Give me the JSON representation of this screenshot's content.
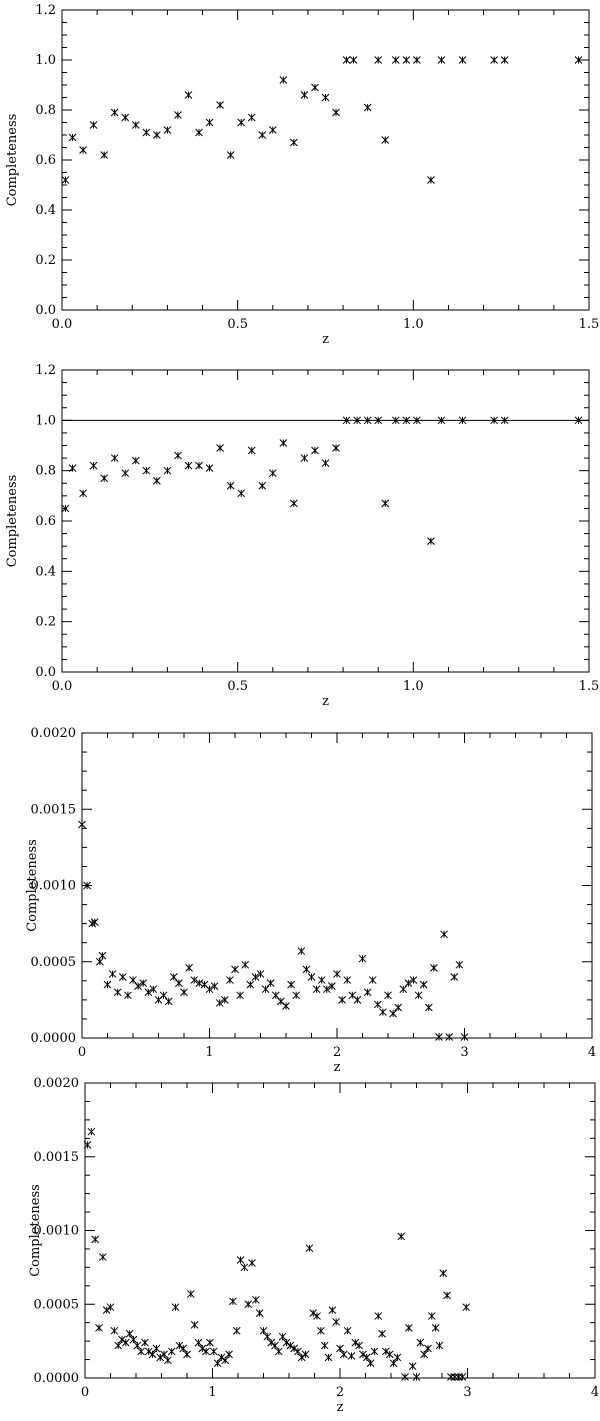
{
  "chart_data": [
    {
      "type": "scatter",
      "xlabel": "z",
      "ylabel": "Completeness",
      "xlim": [
        0,
        1.5
      ],
      "ylim": [
        0,
        1.2
      ],
      "xticks": [
        "0.0",
        "0.5",
        "1.0",
        "1.5"
      ],
      "yticks": [
        "0.0",
        "0.2",
        "0.4",
        "0.6",
        "0.8",
        "1.0",
        "1.2"
      ],
      "reference_line": null,
      "series": [
        {
          "x": [
            0.01,
            0.03,
            0.06,
            0.09,
            0.12,
            0.15,
            0.18,
            0.21,
            0.24,
            0.27,
            0.3,
            0.33,
            0.36,
            0.39,
            0.42,
            0.45,
            0.48,
            0.51,
            0.54,
            0.57,
            0.6,
            0.63,
            0.66,
            0.69,
            0.72,
            0.75,
            0.78,
            0.81,
            0.83,
            0.87,
            0.9,
            0.92,
            0.95,
            0.98,
            1.01,
            1.05,
            1.08,
            1.14,
            1.23,
            1.26,
            1.47
          ],
          "y": [
            0.52,
            0.69,
            0.64,
            0.74,
            0.62,
            0.79,
            0.77,
            0.74,
            0.71,
            0.7,
            0.72,
            0.78,
            0.86,
            0.71,
            0.75,
            0.82,
            0.62,
            0.75,
            0.77,
            0.7,
            0.72,
            0.92,
            0.67,
            0.86,
            0.89,
            0.85,
            0.79,
            1.0,
            1.0,
            0.81,
            1.0,
            0.68,
            1.0,
            1.0,
            1.0,
            0.52,
            1.0,
            1.0,
            1.0,
            1.0,
            1.0
          ]
        }
      ]
    },
    {
      "type": "scatter",
      "xlabel": "z",
      "ylabel": "Completeness",
      "xlim": [
        0,
        1.5
      ],
      "ylim": [
        0,
        1.2
      ],
      "xticks": [
        "0.0",
        "0.5",
        "1.0",
        "1.5"
      ],
      "yticks": [
        "0.0",
        "0.2",
        "0.4",
        "0.6",
        "0.8",
        "1.0",
        "1.2"
      ],
      "reference_line": 1.0,
      "series": [
        {
          "x": [
            0.01,
            0.03,
            0.06,
            0.09,
            0.12,
            0.15,
            0.18,
            0.21,
            0.24,
            0.27,
            0.3,
            0.33,
            0.36,
            0.39,
            0.42,
            0.45,
            0.48,
            0.51,
            0.54,
            0.57,
            0.6,
            0.63,
            0.66,
            0.69,
            0.72,
            0.75,
            0.78,
            0.81,
            0.84,
            0.87,
            0.9,
            0.92,
            0.95,
            0.98,
            1.01,
            1.05,
            1.08,
            1.14,
            1.23,
            1.26,
            1.47
          ],
          "y": [
            0.65,
            0.81,
            0.71,
            0.82,
            0.77,
            0.85,
            0.79,
            0.84,
            0.8,
            0.76,
            0.8,
            0.86,
            0.82,
            0.82,
            0.81,
            0.89,
            0.74,
            0.71,
            0.88,
            0.74,
            0.79,
            0.91,
            0.67,
            0.85,
            0.88,
            0.83,
            0.89,
            1.0,
            1.0,
            1.0,
            1.0,
            0.67,
            1.0,
            1.0,
            1.0,
            0.52,
            1.0,
            1.0,
            1.0,
            1.0,
            1.0
          ]
        }
      ]
    },
    {
      "type": "scatter",
      "xlabel": "z",
      "ylabel": "Completeness",
      "xlim": [
        0,
        4
      ],
      "ylim": [
        0,
        0.002
      ],
      "xticks": [
        "0",
        "1",
        "2",
        "3",
        "4"
      ],
      "yticks": [
        "0.0000",
        "0.0005",
        "0.0010",
        "0.0015",
        "0.0020"
      ],
      "reference_line": null,
      "series": [
        {
          "x": [
            0.0,
            0.04,
            0.08,
            0.1,
            0.14,
            0.16,
            0.2,
            0.24,
            0.28,
            0.32,
            0.36,
            0.4,
            0.44,
            0.48,
            0.52,
            0.56,
            0.6,
            0.64,
            0.68,
            0.72,
            0.76,
            0.8,
            0.84,
            0.88,
            0.92,
            0.96,
            1.0,
            1.04,
            1.08,
            1.12,
            1.16,
            1.2,
            1.24,
            1.28,
            1.32,
            1.36,
            1.4,
            1.44,
            1.48,
            1.52,
            1.56,
            1.6,
            1.64,
            1.68,
            1.72,
            1.76,
            1.8,
            1.84,
            1.88,
            1.92,
            1.96,
            2.0,
            2.04,
            2.08,
            2.12,
            2.16,
            2.2,
            2.24,
            2.28,
            2.32,
            2.36,
            2.4,
            2.44,
            2.48,
            2.52,
            2.56,
            2.6,
            2.64,
            2.68,
            2.72,
            2.76,
            2.8,
            2.84,
            2.88,
            2.92,
            2.96,
            3.0
          ],
          "y": [
            0.0014,
            0.001,
            0.00075,
            0.00076,
            0.0005,
            0.00054,
            0.00035,
            0.00042,
            0.0003,
            0.0004,
            0.00028,
            0.00038,
            0.00034,
            0.00036,
            0.0003,
            0.00032,
            0.00025,
            0.00028,
            0.00024,
            0.0004,
            0.00036,
            0.0003,
            0.00046,
            0.00038,
            0.00036,
            0.00035,
            0.00032,
            0.00034,
            0.00023,
            0.00025,
            0.00038,
            0.00045,
            0.00028,
            0.00048,
            0.00035,
            0.0004,
            0.00042,
            0.00032,
            0.00036,
            0.00028,
            0.00024,
            0.00021,
            0.00035,
            0.00028,
            0.00057,
            0.00045,
            0.0004,
            0.00032,
            0.00038,
            0.00032,
            0.00034,
            0.00042,
            0.00025,
            0.00038,
            0.00028,
            0.00025,
            0.00052,
            0.0003,
            0.00038,
            0.00022,
            0.00017,
            0.00028,
            0.00016,
            0.0002,
            0.00032,
            0.00036,
            0.00038,
            0.00028,
            0.00035,
            0.0002,
            0.00046,
            0.0,
            0.00068,
            0.0,
            0.0004,
            0.00048,
            0.0
          ]
        }
      ]
    },
    {
      "type": "scatter",
      "xlabel": "z",
      "ylabel": "Completeness",
      "xlim": [
        0,
        4
      ],
      "ylim": [
        0,
        0.002
      ],
      "xticks": [
        "0",
        "1",
        "2",
        "3",
        "4"
      ],
      "yticks": [
        "0.0000",
        "0.0005",
        "0.0010",
        "0.0015",
        "0.0020"
      ],
      "reference_line": null,
      "series": [
        {
          "x": [
            0.02,
            0.05,
            0.08,
            0.11,
            0.14,
            0.17,
            0.2,
            0.23,
            0.26,
            0.29,
            0.32,
            0.35,
            0.38,
            0.41,
            0.44,
            0.47,
            0.5,
            0.53,
            0.56,
            0.59,
            0.62,
            0.65,
            0.68,
            0.71,
            0.74,
            0.77,
            0.8,
            0.83,
            0.86,
            0.89,
            0.92,
            0.95,
            0.98,
            1.01,
            1.04,
            1.07,
            1.1,
            1.13,
            1.16,
            1.19,
            1.22,
            1.25,
            1.28,
            1.31,
            1.34,
            1.37,
            1.4,
            1.43,
            1.46,
            1.49,
            1.52,
            1.55,
            1.58,
            1.61,
            1.64,
            1.67,
            1.7,
            1.73,
            1.76,
            1.79,
            1.82,
            1.85,
            1.88,
            1.91,
            1.94,
            1.97,
            2.0,
            2.03,
            2.06,
            2.09,
            2.12,
            2.15,
            2.18,
            2.21,
            2.24,
            2.27,
            2.3,
            2.33,
            2.36,
            2.39,
            2.42,
            2.45,
            2.48,
            2.51,
            2.54,
            2.57,
            2.6,
            2.63,
            2.66,
            2.69,
            2.72,
            2.75,
            2.78,
            2.81,
            2.84,
            2.87,
            2.9,
            2.93,
            2.96,
            2.99
          ],
          "y": [
            0.00158,
            0.00167,
            0.00094,
            0.00034,
            0.00082,
            0.00046,
            0.00048,
            0.00032,
            0.00022,
            0.00026,
            0.00024,
            0.0003,
            0.00026,
            0.00022,
            0.00018,
            0.00024,
            0.00018,
            0.00016,
            0.0002,
            0.00014,
            0.00016,
            0.00012,
            0.00018,
            0.00048,
            0.00022,
            0.0002,
            0.00016,
            0.00057,
            0.00036,
            0.00024,
            0.0002,
            0.00018,
            0.00024,
            0.00018,
            0.0001,
            0.00014,
            0.00012,
            0.00016,
            0.00052,
            0.00032,
            0.0008,
            0.00075,
            0.0005,
            0.00078,
            0.00053,
            0.00044,
            0.00032,
            0.00028,
            0.00024,
            0.00022,
            0.00018,
            0.00028,
            0.00024,
            0.00022,
            0.0002,
            0.00018,
            0.00014,
            0.00016,
            0.00088,
            0.00044,
            0.00042,
            0.00032,
            0.00022,
            0.00014,
            0.00046,
            0.00038,
            0.0002,
            0.00016,
            0.00032,
            0.00015,
            0.00024,
            0.00022,
            0.00016,
            0.00014,
            0.0001,
            0.00018,
            0.00042,
            0.0003,
            0.00018,
            0.00016,
            0.0001,
            0.00014,
            0.00096,
            0.0,
            0.00034,
            8e-05,
            0.0,
            0.00024,
            0.00016,
            0.0002,
            0.00042,
            0.00034,
            0.00022,
            0.00071,
            0.00056,
            0.0,
            0.0,
            0.0,
            0.0,
            0.00048
          ]
        }
      ]
    }
  ]
}
